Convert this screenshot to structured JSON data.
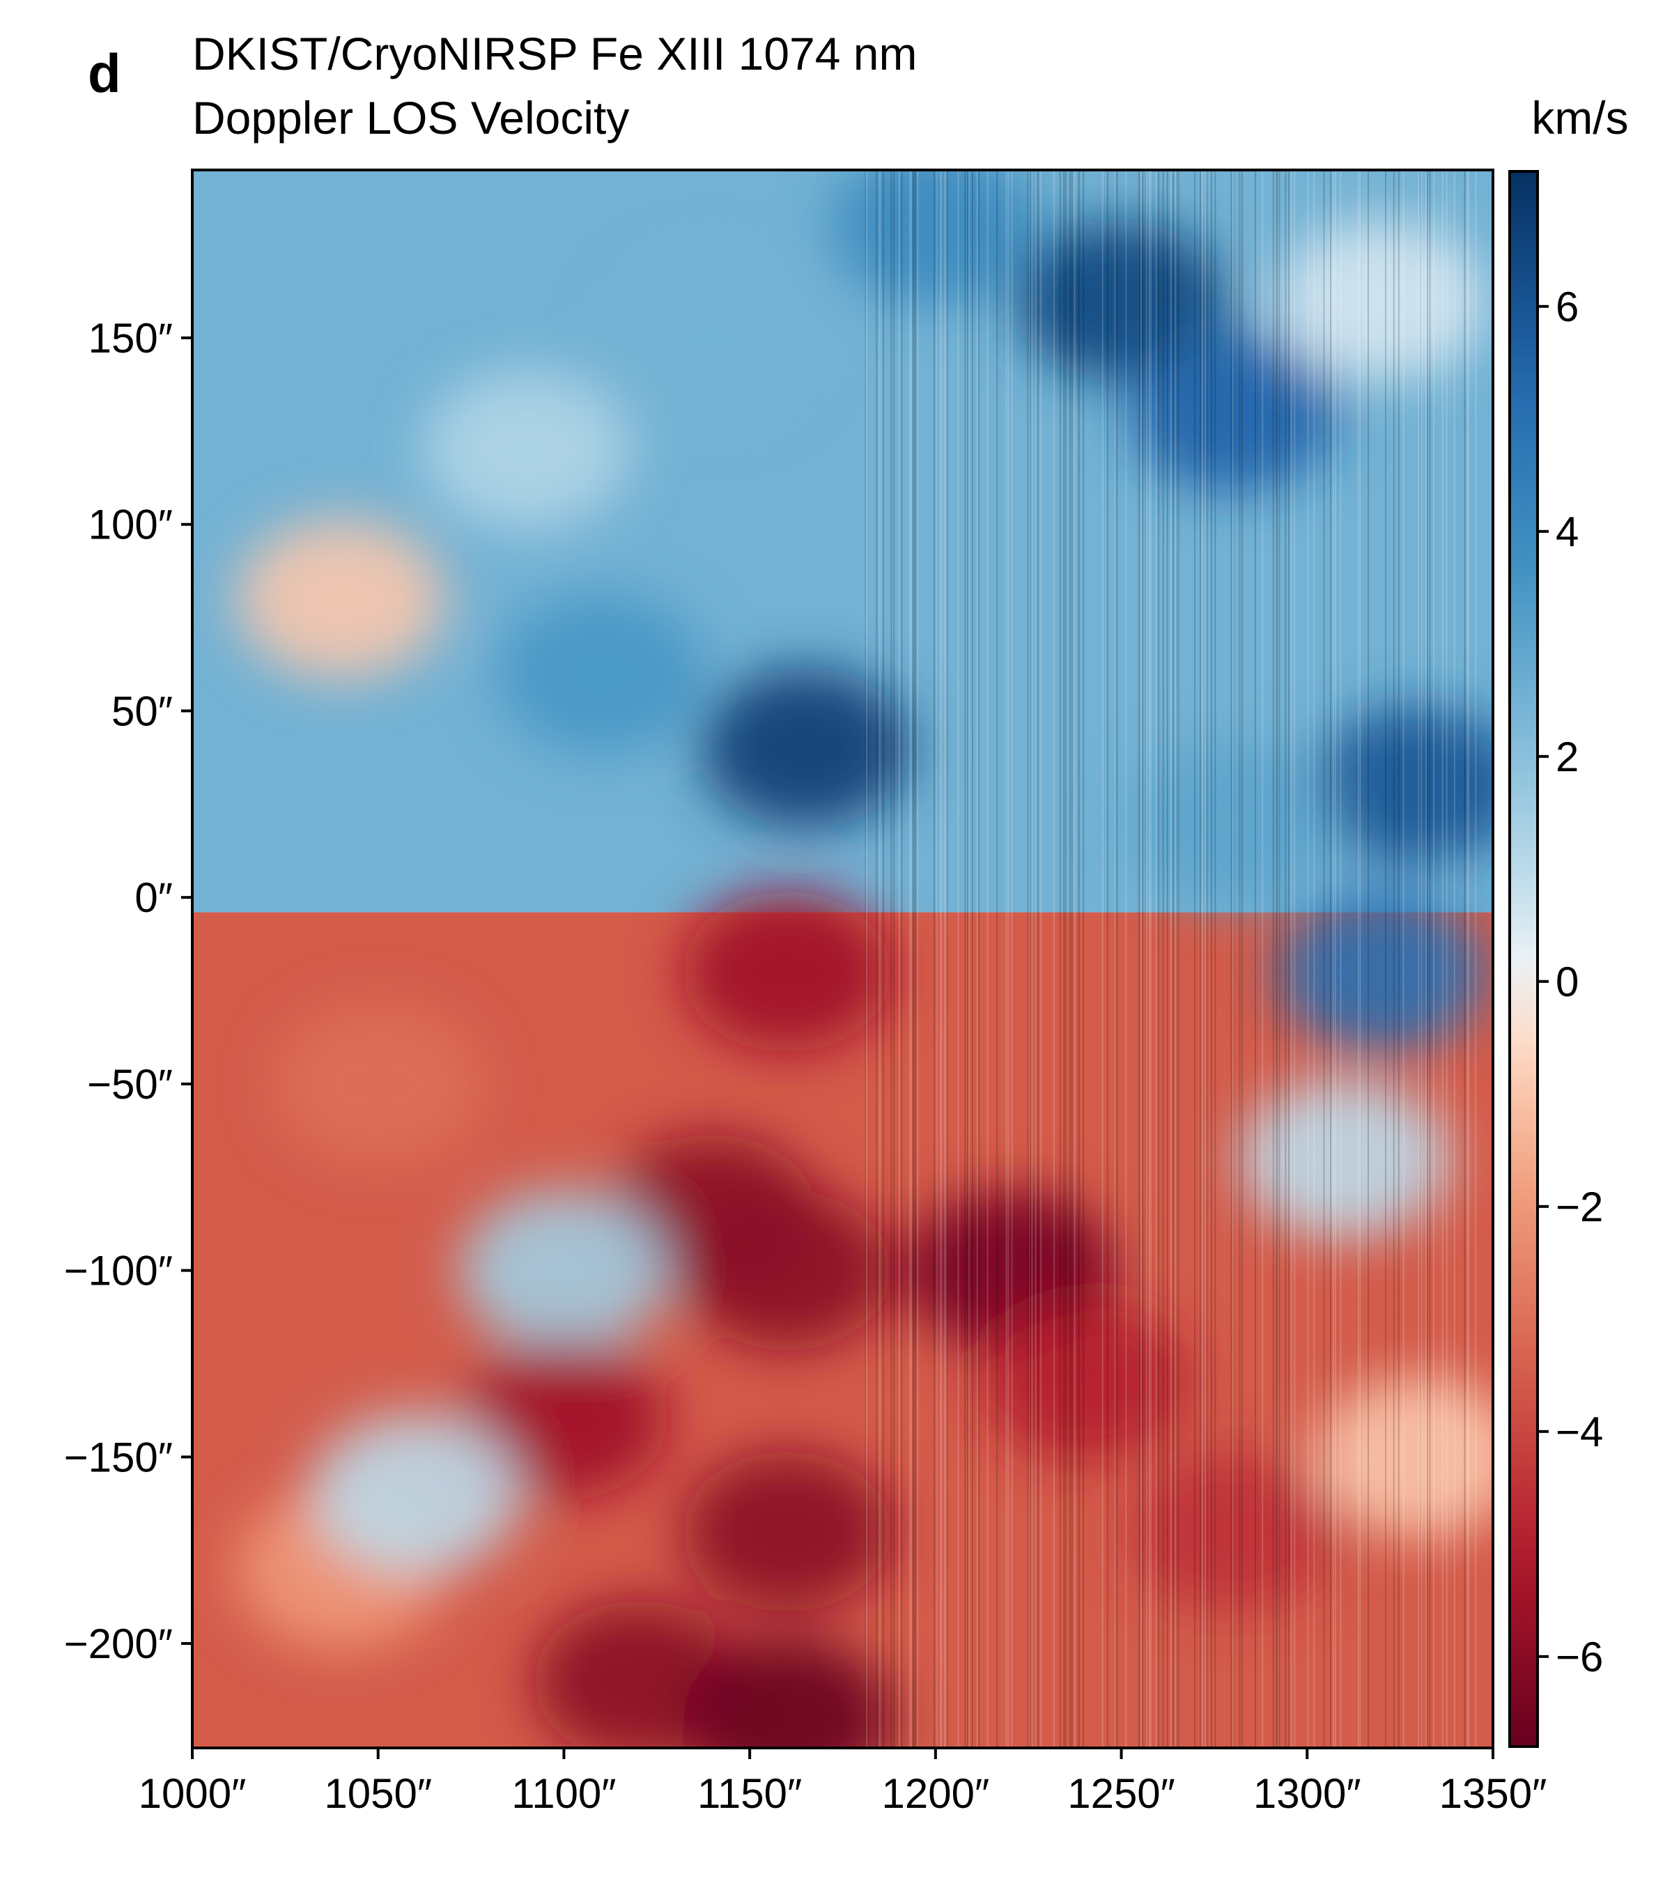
{
  "figure": {
    "panel_label": "d",
    "title_line1": "DKIST/CryoNIRSP Fe XIII 1074 nm",
    "title_line2": "Doppler LOS Velocity"
  },
  "chart_data": {
    "type": "heatmap",
    "title": "DKIST/CryoNIRSP Fe XIII 1074 nm Doppler LOS Velocity",
    "xlabel": "",
    "ylabel": "",
    "xlim": [
      1000,
      1350
    ],
    "ylim": [
      -228,
      195
    ],
    "x_ticks": [
      {
        "value": 1000,
        "label": "1000″"
      },
      {
        "value": 1050,
        "label": "1050″"
      },
      {
        "value": 1100,
        "label": "1100″"
      },
      {
        "value": 1150,
        "label": "1150″"
      },
      {
        "value": 1200,
        "label": "1200″"
      },
      {
        "value": 1250,
        "label": "1250″"
      },
      {
        "value": 1300,
        "label": "1300″"
      },
      {
        "value": 1350,
        "label": "1350″"
      }
    ],
    "y_ticks": [
      {
        "value": 150,
        "label": "150″"
      },
      {
        "value": 100,
        "label": "100″"
      },
      {
        "value": 50,
        "label": "50″"
      },
      {
        "value": 0,
        "label": "0″"
      },
      {
        "value": -50,
        "label": "−50″"
      },
      {
        "value": -100,
        "label": "−100″"
      },
      {
        "value": -150,
        "label": "−150″"
      },
      {
        "value": -200,
        "label": "−200″"
      }
    ],
    "colorbar": {
      "label": "km/s",
      "colormap": "RdBu",
      "range": [
        -6.8,
        7.2
      ],
      "color_low": "#67001f",
      "color_mid": "#f7f7f7",
      "color_high": "#053061",
      "ticks": [
        {
          "value": 6,
          "label": "6"
        },
        {
          "value": 4,
          "label": "4"
        },
        {
          "value": 2,
          "label": "2"
        },
        {
          "value": 0,
          "label": "0"
        },
        {
          "value": -2,
          "label": "−2"
        },
        {
          "value": -4,
          "label": "−4"
        },
        {
          "value": -6,
          "label": "−6"
        }
      ]
    },
    "regions": [
      {
        "x": 1090,
        "y": 120,
        "value": 1.2
      },
      {
        "x": 1140,
        "y": 150,
        "value": 2.5
      },
      {
        "x": 1200,
        "y": 180,
        "value": 4.0
      },
      {
        "x": 1250,
        "y": 160,
        "value": 6.5
      },
      {
        "x": 1280,
        "y": 130,
        "value": 5.5
      },
      {
        "x": 1320,
        "y": 160,
        "value": 0.5
      },
      {
        "x": 1165,
        "y": 40,
        "value": 6.8
      },
      {
        "x": 1110,
        "y": 60,
        "value": 3.5
      },
      {
        "x": 1040,
        "y": 80,
        "value": -1.0
      },
      {
        "x": 1330,
        "y": 30,
        "value": 6.0
      },
      {
        "x": 1280,
        "y": 20,
        "value": 3.0
      },
      {
        "x": 1320,
        "y": -20,
        "value": 5.0
      },
      {
        "x": 1310,
        "y": -70,
        "value": 1.0
      },
      {
        "x": 1160,
        "y": -20,
        "value": -5.5
      },
      {
        "x": 1140,
        "y": -85,
        "value": -6.0
      },
      {
        "x": 1220,
        "y": -100,
        "value": -6.5
      },
      {
        "x": 1160,
        "y": -100,
        "value": -6.0
      },
      {
        "x": 1100,
        "y": -100,
        "value": 1.5
      },
      {
        "x": 1050,
        "y": -50,
        "value": -3.0
      },
      {
        "x": 1100,
        "y": -140,
        "value": -5.5
      },
      {
        "x": 1160,
        "y": -170,
        "value": -6.0
      },
      {
        "x": 1240,
        "y": -130,
        "value": -5.0
      },
      {
        "x": 1280,
        "y": -170,
        "value": -4.5
      },
      {
        "x": 1330,
        "y": -150,
        "value": -1.0
      },
      {
        "x": 1120,
        "y": -210,
        "value": -6.0
      },
      {
        "x": 1160,
        "y": -220,
        "value": -6.8
      },
      {
        "x": 1040,
        "y": -180,
        "value": -2.0
      },
      {
        "x": 1060,
        "y": -160,
        "value": 1.0
      }
    ]
  }
}
